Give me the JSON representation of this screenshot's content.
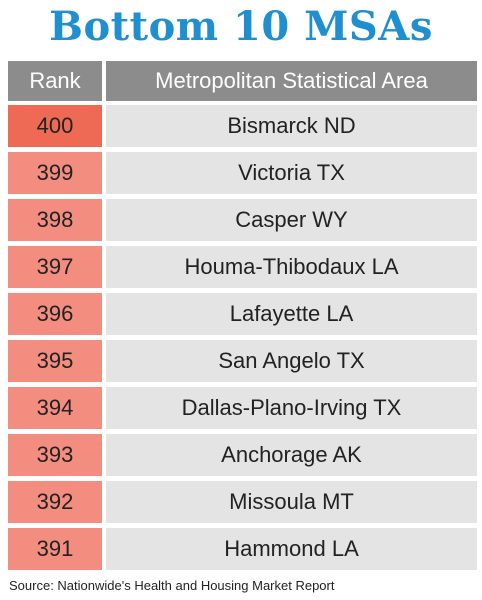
{
  "title": "Bottom 10 MSAs",
  "table": {
    "headers": {
      "rank": "Rank",
      "area": "Metropolitan Statistical Area"
    },
    "rows": [
      {
        "rank": "400",
        "area": "Bismarck ND"
      },
      {
        "rank": "399",
        "area": "Victoria TX"
      },
      {
        "rank": "398",
        "area": "Casper WY"
      },
      {
        "rank": "397",
        "area": "Houma-Thibodaux LA"
      },
      {
        "rank": "396",
        "area": "Lafayette LA"
      },
      {
        "rank": "395",
        "area": "San Angelo TX"
      },
      {
        "rank": "394",
        "area": "Dallas-Plano-Irving TX"
      },
      {
        "rank": "393",
        "area": "Anchorage AK"
      },
      {
        "rank": "392",
        "area": "Missoula MT"
      },
      {
        "rank": "391",
        "area": "Hammond LA"
      }
    ]
  },
  "source": "Source: Nationwide's Health and Housing Market Report",
  "colors": {
    "title": "#1f8fd0",
    "header_bg": "#8c8c8c",
    "rank_top_bg": "#ee6a55",
    "rank_bg": "#f38d80",
    "area_bg": "#e4e4e4"
  }
}
